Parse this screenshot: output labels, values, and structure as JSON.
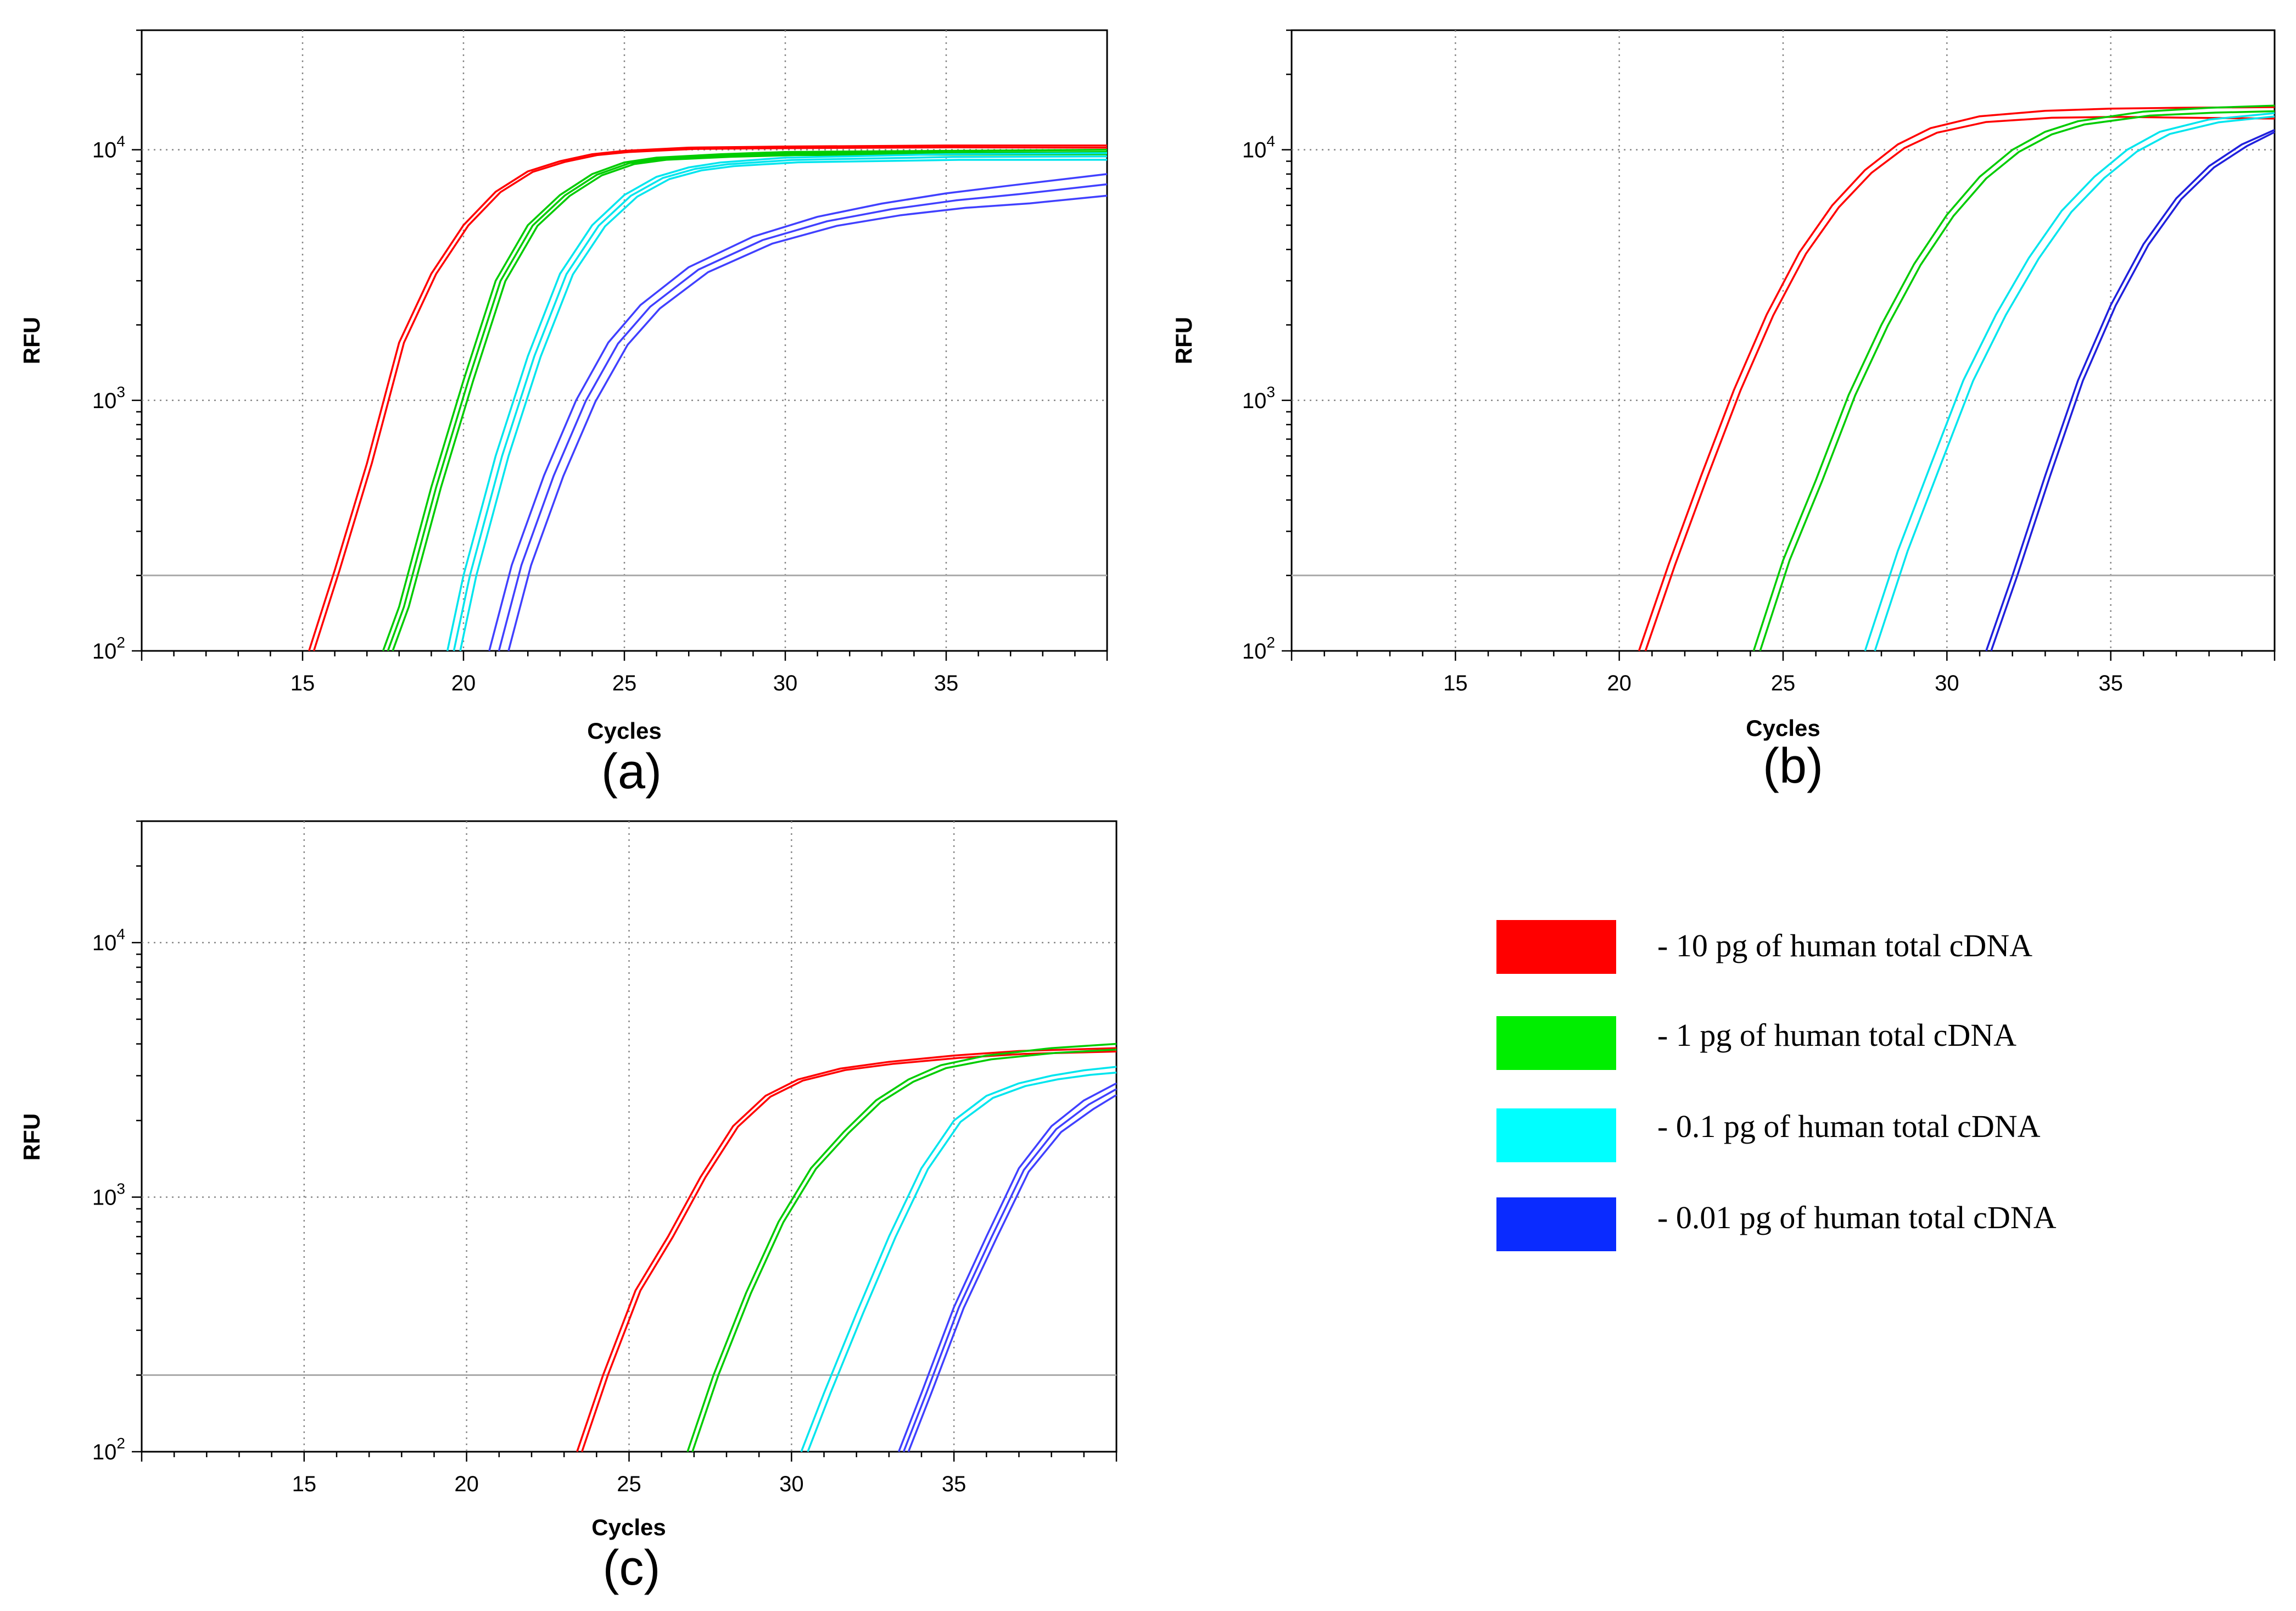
{
  "chart_data": [
    {
      "type": "line",
      "panel": "(a)",
      "xlabel": "Cycles",
      "ylabel": "RFU",
      "yscale": "log",
      "xlim": [
        10,
        40
      ],
      "ylim": [
        100,
        30000
      ],
      "xticks": [
        15,
        20,
        25,
        30,
        35
      ],
      "ytick_labels": [
        {
          "base": "10",
          "exp": "2",
          "value": 100
        },
        {
          "base": "10",
          "exp": "3",
          "value": 1000
        },
        {
          "base": "10",
          "exp": "4",
          "value": 10000
        }
      ],
      "threshold": 200,
      "series": [
        {
          "name": "10 pg",
          "color": "#ff0000",
          "offsets": [
            0,
            0.15
          ],
          "plateau_scales": [
            1.0,
            0.98
          ],
          "x": [
            15.2,
            16,
            17,
            18,
            19,
            20,
            21,
            22,
            23,
            24,
            25,
            27,
            30,
            35,
            40
          ],
          "y": [
            100,
            210,
            560,
            1700,
            3200,
            5000,
            6800,
            8200,
            9000,
            9600,
            9900,
            10200,
            10300,
            10400,
            10400
          ]
        },
        {
          "name": "1 pg",
          "color": "#00cc00",
          "offsets": [
            0,
            0.15,
            0.3
          ],
          "plateau_scales": [
            1.0,
            0.98,
            0.96
          ],
          "x": [
            17.5,
            18,
            19,
            20,
            21,
            22,
            23,
            24,
            25,
            26,
            28,
            30,
            35,
            40
          ],
          "y": [
            100,
            150,
            450,
            1200,
            3000,
            5000,
            6600,
            8000,
            8900,
            9300,
            9600,
            9800,
            9900,
            10000
          ]
        },
        {
          "name": "0.1 pg",
          "color": "#00e5ee",
          "offsets": [
            0,
            0.2,
            0.4
          ],
          "plateau_scales": [
            1.0,
            0.97,
            0.94
          ],
          "x": [
            19.5,
            20,
            21,
            22,
            23,
            24,
            25,
            26,
            27,
            28,
            30,
            35,
            40
          ],
          "y": [
            100,
            200,
            600,
            1500,
            3200,
            5000,
            6600,
            7800,
            8500,
            8900,
            9300,
            9600,
            9700
          ]
        },
        {
          "name": "0.01 pg",
          "color": "#4040ff",
          "offsets": [
            0,
            0.3,
            0.6
          ],
          "plateau_scales": [
            1.0,
            0.91,
            0.82
          ],
          "x": [
            20.8,
            21.5,
            22.5,
            23.5,
            24.5,
            25.5,
            27,
            29,
            31,
            33,
            35,
            37,
            40
          ],
          "y": [
            100,
            220,
            500,
            1000,
            1700,
            2400,
            3400,
            4500,
            5400,
            6100,
            6700,
            7200,
            8000
          ]
        }
      ]
    },
    {
      "type": "line",
      "panel": "(b)",
      "xlabel": "Cycles",
      "ylabel": "RFU",
      "yscale": "log",
      "xlim": [
        10,
        40
      ],
      "ylim": [
        100,
        30000
      ],
      "xticks": [
        15,
        20,
        25,
        30,
        35
      ],
      "ytick_labels": [
        {
          "base": "10",
          "exp": "2",
          "value": 100
        },
        {
          "base": "10",
          "exp": "3",
          "value": 1000
        },
        {
          "base": "10",
          "exp": "4",
          "value": 10000
        }
      ],
      "threshold": 200,
      "series": [
        {
          "name": "10 pg",
          "color": "#ff0000",
          "offsets": [
            0,
            0.2
          ],
          "plateau_scales": [
            1.0,
            0.9
          ],
          "x": [
            20.6,
            21.5,
            22.5,
            23.5,
            24.5,
            25.5,
            26.5,
            27.5,
            28.5,
            29.5,
            31,
            33,
            35,
            37,
            40
          ],
          "y": [
            100,
            220,
            500,
            1100,
            2200,
            3900,
            6000,
            8300,
            10500,
            12200,
            13600,
            14300,
            14600,
            14700,
            14800
          ]
        },
        {
          "name": "1 pg",
          "color": "#00cc00",
          "offsets": [
            0,
            0.2
          ],
          "plateau_scales": [
            1.0,
            0.95
          ],
          "x": [
            24.1,
            25,
            26,
            27,
            28,
            29,
            30,
            31,
            32,
            33,
            34,
            36,
            38,
            40
          ],
          "y": [
            100,
            230,
            480,
            1050,
            2000,
            3500,
            5500,
            7800,
            10000,
            11800,
            13000,
            14200,
            14700,
            15000
          ]
        },
        {
          "name": "0.1 pg",
          "color": "#00e5ee",
          "offsets": [
            0,
            0.3
          ],
          "plateau_scales": [
            1.0,
            0.97
          ],
          "x": [
            27.5,
            28.5,
            29.5,
            30.5,
            31.5,
            32.5,
            33.5,
            34.5,
            35.5,
            36.5,
            38,
            40
          ],
          "y": [
            100,
            250,
            550,
            1200,
            2200,
            3700,
            5700,
            7800,
            10000,
            11800,
            13200,
            14000
          ]
        },
        {
          "name": "0.01 pg",
          "color": "#2020dd",
          "offsets": [
            0,
            0.15
          ],
          "plateau_scales": [
            1.0,
            0.98
          ],
          "x": [
            31.2,
            32,
            33,
            34,
            35,
            36,
            37,
            38,
            39,
            40
          ],
          "y": [
            100,
            200,
            500,
            1200,
            2400,
            4200,
            6400,
            8600,
            10500,
            12000
          ]
        }
      ]
    },
    {
      "type": "line",
      "panel": "(c)",
      "xlabel": "Cycles",
      "ylabel": "RFU",
      "yscale": "log",
      "xlim": [
        10,
        40
      ],
      "ylim": [
        100,
        30000
      ],
      "xticks": [
        15,
        20,
        25,
        30,
        35
      ],
      "ytick_labels": [
        {
          "base": "10",
          "exp": "2",
          "value": 100
        },
        {
          "base": "10",
          "exp": "3",
          "value": 1000
        },
        {
          "base": "10",
          "exp": "4",
          "value": 10000
        }
      ],
      "threshold": 200,
      "series": [
        {
          "name": "10 pg",
          "color": "#ff0000",
          "offsets": [
            0,
            0.15
          ],
          "plateau_scales": [
            1.0,
            0.97
          ],
          "x": [
            23.4,
            24.2,
            25.2,
            26.2,
            27.2,
            28.2,
            29.2,
            30.2,
            31.5,
            33,
            35,
            37,
            40
          ],
          "y": [
            100,
            200,
            430,
            700,
            1200,
            1900,
            2500,
            2900,
            3200,
            3400,
            3600,
            3750,
            3850
          ]
        },
        {
          "name": "1 pg",
          "color": "#00cc00",
          "offsets": [
            0,
            0.15
          ],
          "plateau_scales": [
            1.0,
            0.95
          ],
          "x": [
            26.8,
            27.6,
            28.6,
            29.6,
            30.6,
            31.6,
            32.6,
            33.6,
            34.6,
            36,
            38,
            40
          ],
          "y": [
            100,
            200,
            420,
            800,
            1300,
            1800,
            2400,
            2900,
            3300,
            3600,
            3850,
            4000
          ]
        },
        {
          "name": "0.1 pg",
          "color": "#00e5ee",
          "offsets": [
            0,
            0.2
          ],
          "plateau_scales": [
            1.0,
            0.95
          ],
          "x": [
            30.3,
            31,
            32,
            33,
            34,
            35,
            36,
            37,
            38,
            39,
            40
          ],
          "y": [
            100,
            170,
            350,
            700,
            1300,
            2000,
            2500,
            2800,
            3000,
            3150,
            3250
          ]
        },
        {
          "name": "0.01 pg",
          "color": "#4040ff",
          "offsets": [
            0,
            0.15,
            0.3
          ],
          "plateau_scales": [
            1.0,
            0.95,
            0.9
          ],
          "x": [
            33.3,
            34,
            35,
            36,
            37,
            38,
            39,
            40
          ],
          "y": [
            100,
            170,
            370,
            700,
            1300,
            1900,
            2400,
            2800
          ]
        }
      ]
    }
  ],
  "legend": {
    "items": [
      {
        "label": "- 10 pg of human total cDNA",
        "color": "#ff0000"
      },
      {
        "label": "- 1 pg of human total cDNA",
        "color": "#00ee00"
      },
      {
        "label": "- 0.1 pg of human total cDNA",
        "color": "#00ffff"
      },
      {
        "label": "- 0.01 pg of human total cDNA",
        "color": "#0a2bff"
      }
    ]
  }
}
